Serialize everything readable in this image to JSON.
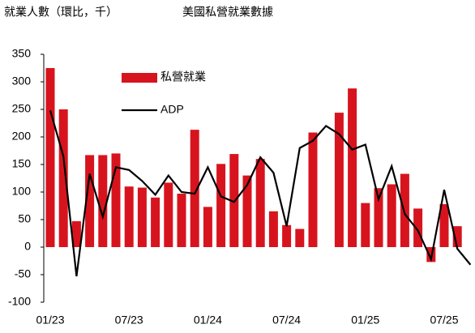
{
  "chart_data": {
    "type": "bar_line",
    "title": "就業人數（環比，千）",
    "subtitle": "美國私營就業數據",
    "categories": [
      "01/23",
      null,
      null,
      null,
      null,
      null,
      "07/23",
      null,
      null,
      null,
      null,
      null,
      "01/24",
      null,
      null,
      null,
      null,
      null,
      "07/24",
      null,
      null,
      null,
      null,
      null,
      "01/25",
      null,
      null,
      null,
      null,
      null,
      "07/25",
      null,
      null
    ],
    "series": [
      {
        "name": "私營就業",
        "type": "bar",
        "color": "#d7141e",
        "values": [
          325,
          250,
          47,
          167,
          167,
          170,
          110,
          108,
          90,
          117,
          97,
          213,
          73,
          151,
          169,
          130,
          160,
          65,
          40,
          33,
          208,
          null,
          244,
          288,
          80,
          107,
          114,
          133,
          70,
          -27,
          78,
          38,
          null
        ]
      },
      {
        "name": "ADP",
        "type": "line",
        "color": "#000000",
        "values": [
          248,
          165,
          -53,
          133,
          55,
          145,
          140,
          120,
          95,
          130,
          100,
          97,
          145,
          92,
          82,
          113,
          163,
          135,
          38,
          180,
          193,
          220,
          205,
          177,
          186,
          87,
          147,
          60,
          30,
          -22,
          104,
          -3,
          -32
        ]
      }
    ],
    "ylim": [
      -100,
      350
    ],
    "yticks": [
      -100,
      -50,
      0,
      50,
      100,
      150,
      200,
      250,
      300,
      350
    ],
    "grid": false
  }
}
